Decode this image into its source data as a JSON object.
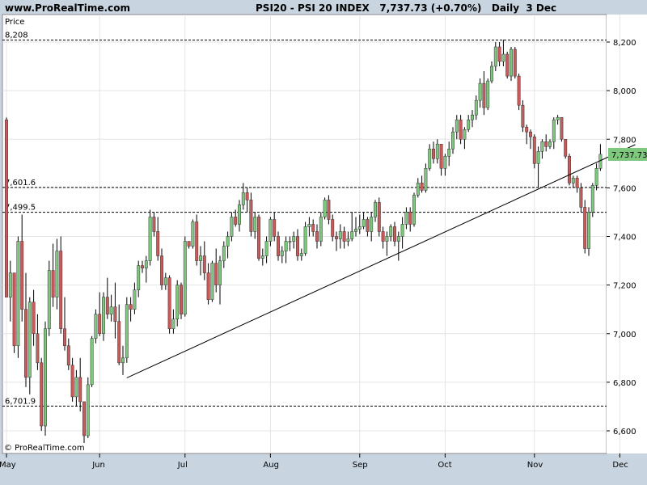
{
  "header": {
    "site": "www.ProRealTime.com",
    "symbol_line": "PSI20 - PSI 20 INDEX   7,737.73 (+0.70%)   Daily  3 Dec"
  },
  "footer": {
    "copyright": "© ProRealTime.com"
  },
  "colors": {
    "frame": "#c8d4e0",
    "up": "#7ec87e",
    "down": "#c85a5a",
    "wick": "#000000",
    "price_tag": "#7ec87e"
  },
  "chart_data": {
    "type": "candlestick",
    "title": "PSI20 - PSI 20 INDEX",
    "ylabel": "Price",
    "ylim": [
      6540,
      8260
    ],
    "y_ticks": [
      6600,
      6800,
      7000,
      7200,
      7400,
      7600,
      7800,
      8000,
      8200
    ],
    "y_tick_labels": [
      "6,600",
      "6,800",
      "7,000",
      "7,200",
      "7,400",
      "7,600",
      "7,800",
      "8,000",
      "8,200"
    ],
    "x_labels": [
      {
        "label": "May",
        "index": 0
      },
      {
        "label": "Jun",
        "index": 24
      },
      {
        "label": "Jul",
        "index": 46
      },
      {
        "label": "Aug",
        "index": 68
      },
      {
        "label": "Sep",
        "index": 91
      },
      {
        "label": "Oct",
        "index": 113
      },
      {
        "label": "Nov",
        "index": 136
      },
      {
        "label": "Dec",
        "index": 158
      }
    ],
    "reference_lines": [
      {
        "value": 8208,
        "label": "8,208"
      },
      {
        "value": 7601.6,
        "label": "7,601.6"
      },
      {
        "value": 7499.5,
        "label": "7,499.5"
      },
      {
        "value": 6701.9,
        "label": "6,701.9"
      }
    ],
    "trendline": [
      {
        "index": 31,
        "value": 6818
      },
      {
        "index": 162,
        "value": 7778
      }
    ],
    "last_price": {
      "value": 7737.73,
      "label": "7,737.73"
    },
    "candles": [
      [
        7880,
        7890,
        7150,
        7150
      ],
      [
        7150,
        7300,
        7050,
        7250
      ],
      [
        7250,
        7250,
        6920,
        6950
      ],
      [
        6950,
        7400,
        6900,
        7380
      ],
      [
        7380,
        7490,
        7050,
        7100
      ],
      [
        7100,
        7250,
        6780,
        6820
      ],
      [
        6820,
        7150,
        6750,
        7130
      ],
      [
        7130,
        7180,
        6950,
        7000
      ],
      [
        7000,
        7080,
        6850,
        6880
      ],
      [
        6880,
        6900,
        6600,
        6620
      ],
      [
        6620,
        7050,
        6580,
        7020
      ],
      [
        7020,
        7300,
        6990,
        7260
      ],
      [
        7260,
        7370,
        7110,
        7150
      ],
      [
        7150,
        7390,
        7100,
        7340
      ],
      [
        7340,
        7400,
        7000,
        7020
      ],
      [
        7020,
        7150,
        6930,
        6950
      ],
      [
        6950,
        6980,
        6850,
        6870
      ],
      [
        6870,
        6900,
        6720,
        6740
      ],
      [
        6740,
        6850,
        6700,
        6820
      ],
      [
        6820,
        6900,
        6680,
        6720
      ],
      [
        6720,
        6720,
        6550,
        6580
      ],
      [
        6580,
        6820,
        6570,
        6790
      ],
      [
        6790,
        6990,
        6780,
        6980
      ],
      [
        6980,
        7100,
        6960,
        7080
      ],
      [
        7080,
        7170,
        6990,
        7000
      ],
      [
        7000,
        7170,
        6970,
        7150
      ],
      [
        7150,
        7230,
        7060,
        7080
      ],
      [
        7080,
        7160,
        7050,
        7110
      ],
      [
        7110,
        7210,
        6980,
        7050
      ],
      [
        7050,
        7120,
        6870,
        6880
      ],
      [
        6880,
        6950,
        6830,
        6900
      ],
      [
        6900,
        7150,
        6880,
        7120
      ],
      [
        7120,
        7150,
        7050,
        7100
      ],
      [
        7100,
        7210,
        7080,
        7180
      ],
      [
        7180,
        7300,
        7150,
        7280
      ],
      [
        7280,
        7300,
        7250,
        7270
      ],
      [
        7270,
        7320,
        7210,
        7300
      ],
      [
        7300,
        7510,
        7280,
        7480
      ],
      [
        7480,
        7500,
        7400,
        7420
      ],
      [
        7420,
        7480,
        7300,
        7320
      ],
      [
        7320,
        7350,
        7180,
        7200
      ],
      [
        7200,
        7250,
        7180,
        7230
      ],
      [
        7230,
        7240,
        7000,
        7020
      ],
      [
        7020,
        7100,
        7000,
        7060
      ],
      [
        7060,
        7220,
        7030,
        7200
      ],
      [
        7200,
        7210,
        7060,
        7080
      ],
      [
        7080,
        7400,
        7070,
        7380
      ],
      [
        7380,
        7380,
        7350,
        7360
      ],
      [
        7360,
        7470,
        7350,
        7460
      ],
      [
        7460,
        7490,
        7280,
        7300
      ],
      [
        7300,
        7360,
        7240,
        7320
      ],
      [
        7320,
        7380,
        7220,
        7250
      ],
      [
        7250,
        7290,
        7120,
        7140
      ],
      [
        7140,
        7300,
        7130,
        7290
      ],
      [
        7290,
        7350,
        7170,
        7200
      ],
      [
        7200,
        7320,
        7120,
        7300
      ],
      [
        7300,
        7380,
        7270,
        7360
      ],
      [
        7360,
        7420,
        7310,
        7400
      ],
      [
        7400,
        7500,
        7380,
        7480
      ],
      [
        7480,
        7510,
        7440,
        7450
      ],
      [
        7450,
        7550,
        7420,
        7530
      ],
      [
        7530,
        7620,
        7510,
        7580
      ],
      [
        7580,
        7600,
        7500,
        7550
      ],
      [
        7550,
        7580,
        7400,
        7420
      ],
      [
        7420,
        7500,
        7390,
        7480
      ],
      [
        7480,
        7490,
        7300,
        7310
      ],
      [
        7310,
        7350,
        7280,
        7320
      ],
      [
        7320,
        7400,
        7290,
        7380
      ],
      [
        7380,
        7480,
        7360,
        7470
      ],
      [
        7470,
        7500,
        7380,
        7400
      ],
      [
        7400,
        7420,
        7300,
        7320
      ],
      [
        7320,
        7360,
        7290,
        7340
      ],
      [
        7340,
        7400,
        7290,
        7380
      ],
      [
        7380,
        7400,
        7340,
        7380
      ],
      [
        7380,
        7420,
        7350,
        7400
      ],
      [
        7400,
        7430,
        7300,
        7320
      ],
      [
        7320,
        7350,
        7300,
        7330
      ],
      [
        7330,
        7460,
        7320,
        7440
      ],
      [
        7440,
        7480,
        7400,
        7450
      ],
      [
        7450,
        7470,
        7400,
        7420
      ],
      [
        7420,
        7450,
        7350,
        7380
      ],
      [
        7380,
        7500,
        7360,
        7480
      ],
      [
        7480,
        7560,
        7470,
        7550
      ],
      [
        7550,
        7570,
        7450,
        7470
      ],
      [
        7470,
        7490,
        7380,
        7400
      ],
      [
        7400,
        7420,
        7340,
        7390
      ],
      [
        7390,
        7450,
        7350,
        7420
      ],
      [
        7420,
        7440,
        7350,
        7380
      ],
      [
        7380,
        7420,
        7360,
        7390
      ],
      [
        7390,
        7500,
        7380,
        7420
      ],
      [
        7420,
        7480,
        7400,
        7430
      ],
      [
        7430,
        7490,
        7410,
        7440
      ],
      [
        7440,
        7500,
        7430,
        7470
      ],
      [
        7470,
        7480,
        7400,
        7420
      ],
      [
        7420,
        7500,
        7380,
        7480
      ],
      [
        7480,
        7550,
        7460,
        7540
      ],
      [
        7540,
        7560,
        7400,
        7420
      ],
      [
        7420,
        7440,
        7350,
        7380
      ],
      [
        7380,
        7420,
        7320,
        7400
      ],
      [
        7400,
        7450,
        7380,
        7440
      ],
      [
        7440,
        7460,
        7360,
        7380
      ],
      [
        7380,
        7420,
        7300,
        7400
      ],
      [
        7400,
        7480,
        7350,
        7450
      ],
      [
        7450,
        7520,
        7430,
        7500
      ],
      [
        7500,
        7520,
        7420,
        7450
      ],
      [
        7450,
        7580,
        7440,
        7570
      ],
      [
        7570,
        7640,
        7560,
        7620
      ],
      [
        7620,
        7650,
        7580,
        7590
      ],
      [
        7590,
        7700,
        7580,
        7680
      ],
      [
        7680,
        7780,
        7670,
        7760
      ],
      [
        7760,
        7790,
        7700,
        7720
      ],
      [
        7720,
        7800,
        7700,
        7780
      ],
      [
        7780,
        7780,
        7650,
        7680
      ],
      [
        7680,
        7740,
        7650,
        7730
      ],
      [
        7730,
        7790,
        7690,
        7760
      ],
      [
        7760,
        7850,
        7740,
        7830
      ],
      [
        7830,
        7900,
        7800,
        7880
      ],
      [
        7880,
        7900,
        7780,
        7800
      ],
      [
        7800,
        7850,
        7760,
        7840
      ],
      [
        7840,
        7900,
        7830,
        7880
      ],
      [
        7880,
        7920,
        7850,
        7900
      ],
      [
        7900,
        7980,
        7880,
        7960
      ],
      [
        7960,
        8050,
        7930,
        8030
      ],
      [
        8030,
        8080,
        7900,
        7930
      ],
      [
        7930,
        8050,
        7920,
        8040
      ],
      [
        8040,
        8120,
        8030,
        8100
      ],
      [
        8100,
        8200,
        8080,
        8180
      ],
      [
        8180,
        8200,
        8100,
        8120
      ],
      [
        8120,
        8210,
        8100,
        8150
      ],
      [
        8150,
        8160,
        8050,
        8060
      ],
      [
        8060,
        8180,
        8040,
        8170
      ],
      [
        8170,
        8180,
        8050,
        8060
      ],
      [
        8060,
        8070,
        7920,
        7940
      ],
      [
        7940,
        7960,
        7830,
        7850
      ],
      [
        7850,
        7860,
        7780,
        7830
      ],
      [
        7830,
        7840,
        7760,
        7810
      ],
      [
        7810,
        7820,
        7680,
        7700
      ],
      [
        7700,
        7770,
        7600,
        7750
      ],
      [
        7750,
        7800,
        7720,
        7790
      ],
      [
        7790,
        7820,
        7750,
        7770
      ],
      [
        7770,
        7800,
        7760,
        7790
      ],
      [
        7790,
        7890,
        7760,
        7880
      ],
      [
        7880,
        7900,
        7860,
        7890
      ],
      [
        7890,
        7890,
        7790,
        7800
      ],
      [
        7800,
        7800,
        7720,
        7730
      ],
      [
        7730,
        7740,
        7610,
        7620
      ],
      [
        7620,
        7650,
        7600,
        7640
      ],
      [
        7640,
        7650,
        7580,
        7600
      ],
      [
        7600,
        7620,
        7500,
        7520
      ],
      [
        7520,
        7550,
        7330,
        7350
      ],
      [
        7350,
        7520,
        7320,
        7500
      ],
      [
        7500,
        7620,
        7480,
        7610
      ],
      [
        7610,
        7700,
        7590,
        7680
      ],
      [
        7680,
        7780,
        7670,
        7738
      ]
    ]
  }
}
